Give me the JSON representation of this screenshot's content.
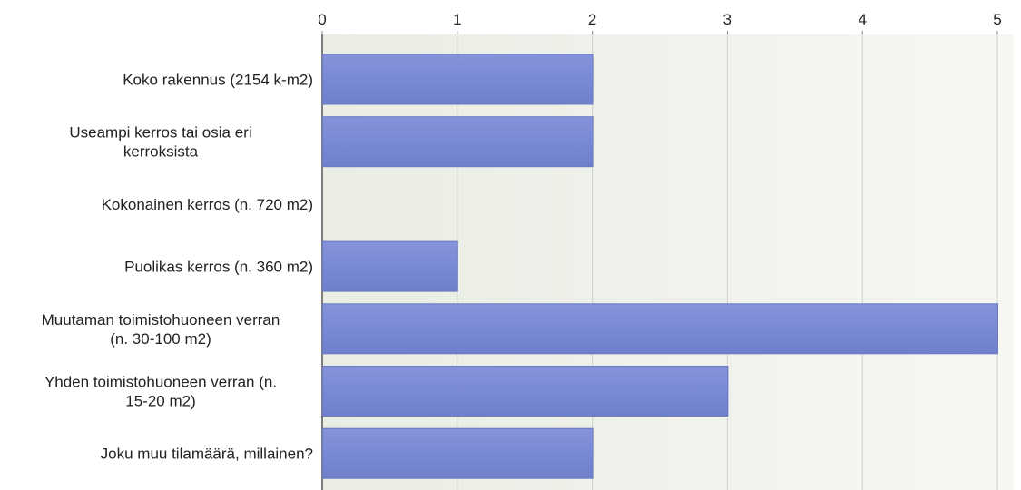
{
  "chart_data": {
    "type": "bar",
    "orientation": "horizontal",
    "categories": [
      [
        "Koko rakennus (2154 k-m2)"
      ],
      [
        "Useampi kerros tai osia eri",
        "kerroksista"
      ],
      [
        "Kokonainen kerros (n. 720 m2)"
      ],
      [
        "Puolikas kerros (n. 360 m2)"
      ],
      [
        "Muutaman toimistohuoneen verran",
        "(n. 30-100 m2)"
      ],
      [
        "Yhden toimistohuoneen verran (n.",
        "15-20 m2)"
      ],
      [
        "Joku muu tilamäärä, millainen?"
      ]
    ],
    "values": [
      2,
      2,
      0,
      1,
      5,
      3,
      2
    ],
    "x_ticks": [
      "0",
      "1",
      "2",
      "3",
      "4",
      "5"
    ],
    "xlim": [
      0,
      5
    ],
    "title": "",
    "xlabel": "",
    "ylabel": "",
    "grid": true,
    "axis_position": "top",
    "bar_color": "#7b8bd6",
    "bar_edge_color": "#6a79c0",
    "background_color": "#eef0e9"
  }
}
